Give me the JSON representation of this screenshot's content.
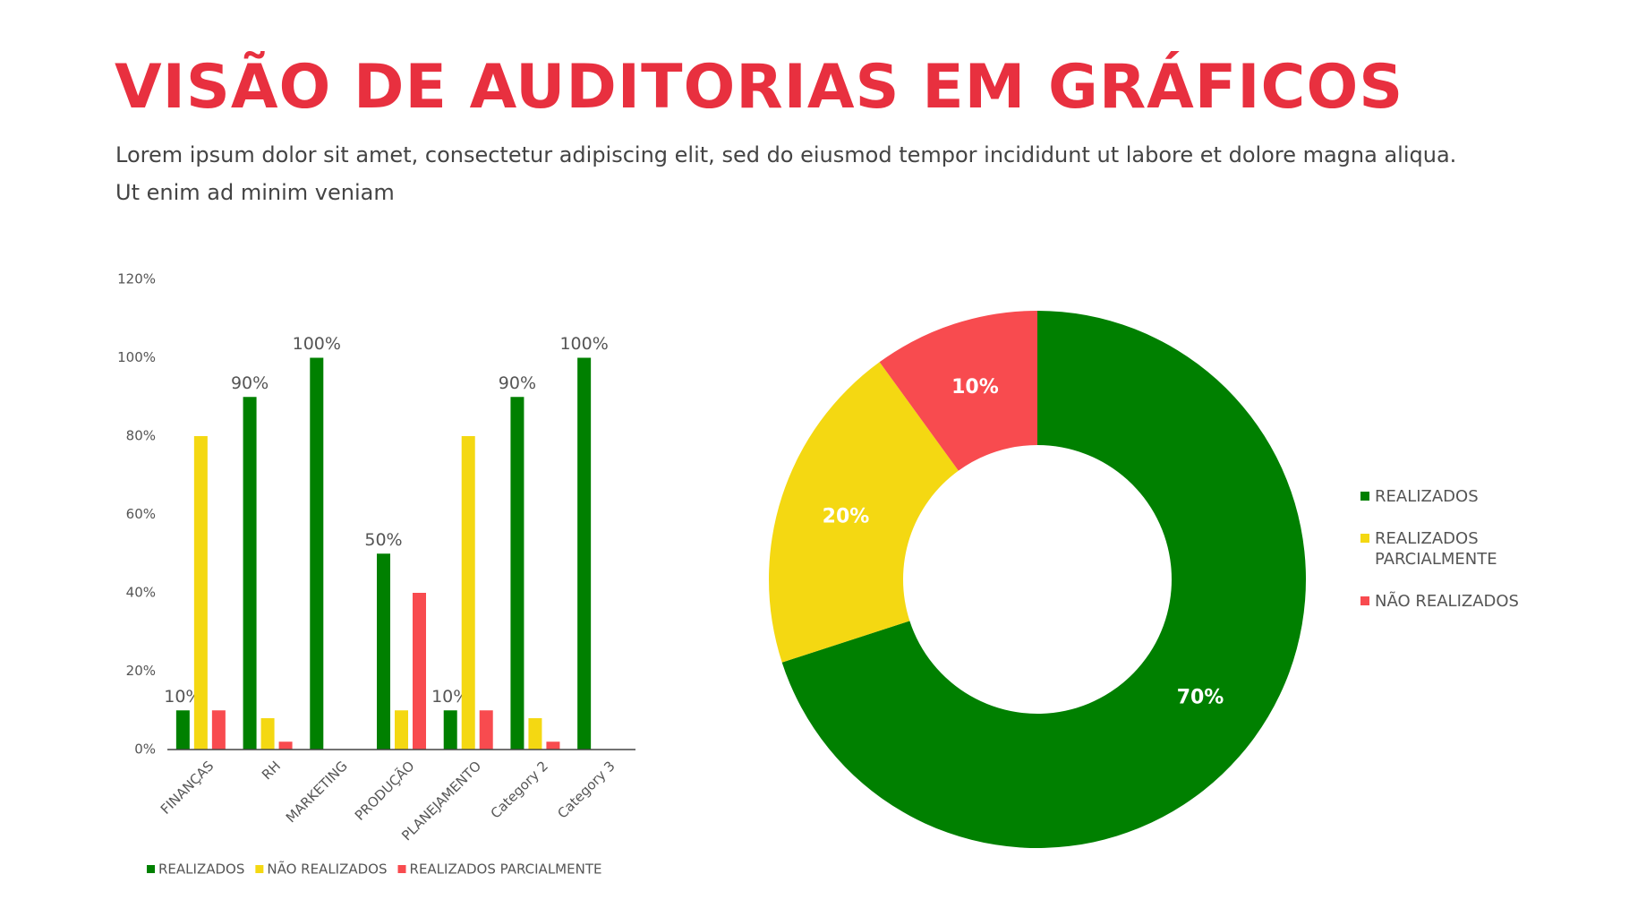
{
  "title": "VISÃO DE AUDITORIAS EM GRÁFICOS",
  "subtitle": "Lorem ipsum dolor sit amet, consectetur adipiscing elit, sed do eiusmod tempor incididunt ut labore et dolore magna aliqua. Ut enim ad minim veniam",
  "chart_data": [
    {
      "type": "bar",
      "categories": [
        "FINANÇAS",
        "RH",
        "MARKETING",
        "PRODUÇÃO",
        "PLANEJAMENTO",
        "Category 2",
        "Category 3"
      ],
      "series": [
        {
          "name": "REALIZADOS",
          "color": "#008000",
          "values": [
            10,
            90,
            100,
            50,
            10,
            90,
            100
          ],
          "value_labels": [
            "10%",
            "90%",
            "100%",
            "50%",
            "10%",
            "90%",
            "100%"
          ]
        },
        {
          "name": "NÃO REALIZADOS",
          "color": "#f4d812",
          "values": [
            80,
            8,
            0,
            10,
            80,
            8,
            0
          ]
        },
        {
          "name": "REALIZADOS PARCIALMENTE",
          "color": "#f84b4f",
          "values": [
            10,
            2,
            0,
            40,
            10,
            2,
            0
          ]
        }
      ],
      "ylim": [
        0,
        120
      ],
      "yticks": [
        {
          "value": 0,
          "label": "0%"
        },
        {
          "value": 20,
          "label": "20%"
        },
        {
          "value": 40,
          "label": "40%"
        },
        {
          "value": 60,
          "label": "60%"
        },
        {
          "value": 80,
          "label": "80%"
        },
        {
          "value": 100,
          "label": "100%"
        },
        {
          "value": 120,
          "label": "120%"
        }
      ],
      "legend": "bottom"
    },
    {
      "type": "donut",
      "categories": [
        "REALIZADOS",
        "REALIZADOS PARCIALMENTE",
        "NÃO REALIZADOS"
      ],
      "values": [
        70,
        20,
        10
      ],
      "value_labels": [
        "70%",
        "20%",
        "10%"
      ],
      "colors": [
        "#008000",
        "#f4d812",
        "#f84b4f"
      ],
      "legend": "right"
    }
  ]
}
